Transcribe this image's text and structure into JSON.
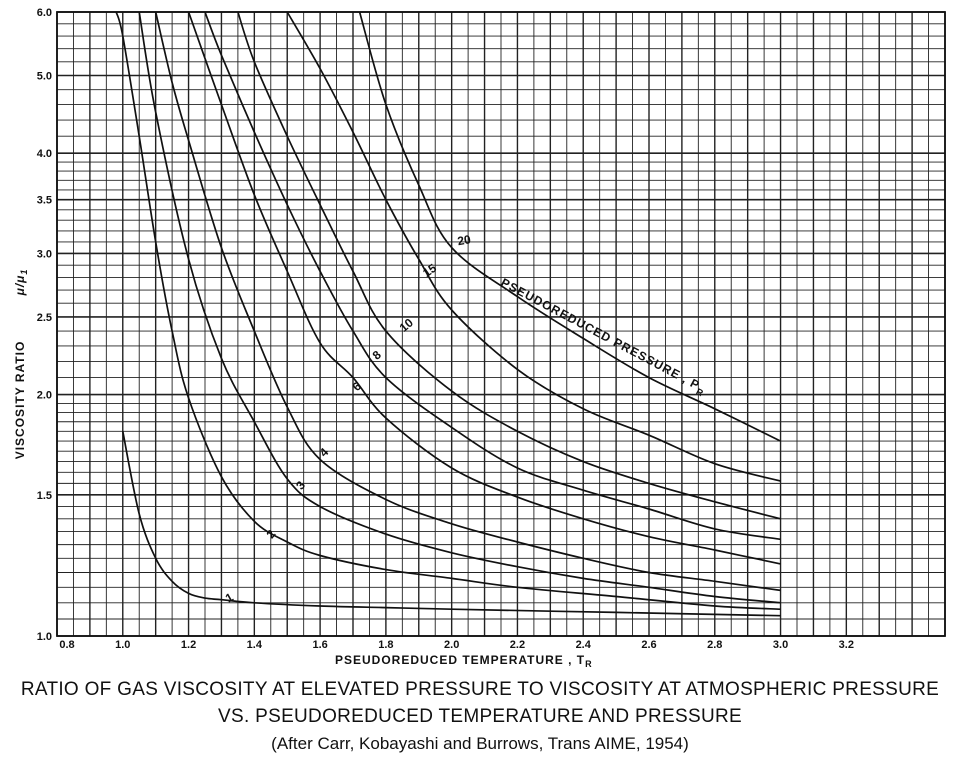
{
  "chart_data": {
    "type": "line",
    "title": "RATIO OF GAS VISCOSITY AT ELEVATED PRESSURE TO VISCOSITY AT ATMOSPHERIC PRESSURE",
    "subtitle": "VS. PSEUDOREDUCED TEMPERATURE AND PRESSURE",
    "source": "(After Carr, Kobayashi and Burrows, Trans AIME, 1954)",
    "xlabel": "PSEUDOREDUCED TEMPERATURE , T",
    "xlabel_subscript": "R",
    "ylabel": "VISCOSITY  RATIO",
    "ylabel_symbol": "μ/μ",
    "ylabel_symbol_subscript": "1",
    "xlim": [
      0.8,
      3.5
    ],
    "ylim": [
      1.0,
      6.0
    ],
    "y_scale": "log",
    "grid": true,
    "x_tick_labels": [
      "0.8",
      "1.0",
      "1.2",
      "1.4",
      "1.6",
      "1.8",
      "2.0",
      "2.2",
      "2.4",
      "2.6",
      "2.8",
      "3.0",
      "3.2"
    ],
    "x_tick_values": [
      0.8,
      1.0,
      1.2,
      1.4,
      1.6,
      1.8,
      2.0,
      2.2,
      2.4,
      2.6,
      2.8,
      3.0,
      3.2
    ],
    "y_tick_labels": [
      "1.0",
      "1.5",
      "2.0",
      "2.5",
      "3.0",
      "3.5",
      "4.0",
      "5.0",
      "6.0"
    ],
    "y_tick_values": [
      1.0,
      1.5,
      2.0,
      2.5,
      3.0,
      3.5,
      4.0,
      5.0,
      6.0
    ],
    "curve_annotation": "PSEUDOREDUCED  PRESSURE , P",
    "curve_annotation_subscript": "R",
    "series": [
      {
        "name": "1",
        "x": [
          1.0,
          1.05,
          1.1,
          1.15,
          1.2,
          1.25,
          1.3,
          1.4,
          1.6,
          1.8,
          2.0,
          2.5,
          3.0
        ],
        "y": [
          1.8,
          1.42,
          1.25,
          1.17,
          1.13,
          1.115,
          1.11,
          1.1,
          1.09,
          1.085,
          1.08,
          1.07,
          1.06
        ]
      },
      {
        "name": "2",
        "x": [
          0.98,
          1.0,
          1.05,
          1.1,
          1.15,
          1.2,
          1.3,
          1.4,
          1.5,
          1.6,
          1.8,
          2.0,
          2.2,
          2.5,
          2.8,
          3.0
        ],
        "y": [
          6.0,
          5.6,
          4.2,
          3.1,
          2.4,
          1.98,
          1.58,
          1.39,
          1.31,
          1.26,
          1.21,
          1.18,
          1.15,
          1.12,
          1.09,
          1.08
        ]
      },
      {
        "name": "3",
        "x": [
          1.05,
          1.1,
          1.2,
          1.3,
          1.4,
          1.5,
          1.6,
          1.8,
          2.0,
          2.2,
          2.4,
          2.6,
          2.8,
          3.0
        ],
        "y": [
          6.0,
          4.5,
          2.95,
          2.22,
          1.85,
          1.57,
          1.45,
          1.34,
          1.27,
          1.22,
          1.18,
          1.15,
          1.12,
          1.1
        ]
      },
      {
        "name": "4",
        "x": [
          1.1,
          1.15,
          1.2,
          1.3,
          1.4,
          1.5,
          1.6,
          1.8,
          2.0,
          2.2,
          2.4,
          2.6,
          2.8,
          3.0
        ],
        "y": [
          6.0,
          4.9,
          4.15,
          3.05,
          2.4,
          1.93,
          1.66,
          1.48,
          1.38,
          1.31,
          1.25,
          1.2,
          1.17,
          1.14
        ]
      },
      {
        "name": "6",
        "x": [
          1.2,
          1.3,
          1.4,
          1.5,
          1.6,
          1.7,
          1.8,
          2.0,
          2.2,
          2.4,
          2.6,
          2.8,
          3.0
        ],
        "y": [
          6.0,
          4.6,
          3.55,
          2.85,
          2.32,
          2.1,
          1.87,
          1.62,
          1.49,
          1.4,
          1.33,
          1.28,
          1.23
        ]
      },
      {
        "name": "8",
        "x": [
          1.25,
          1.3,
          1.4,
          1.5,
          1.6,
          1.7,
          1.8,
          2.0,
          2.2,
          2.4,
          2.6,
          2.8,
          3.0
        ],
        "y": [
          6.0,
          5.3,
          4.25,
          3.45,
          2.85,
          2.4,
          2.1,
          1.82,
          1.62,
          1.52,
          1.44,
          1.36,
          1.32
        ]
      },
      {
        "name": "10",
        "x": [
          1.35,
          1.4,
          1.5,
          1.6,
          1.7,
          1.8,
          2.0,
          2.2,
          2.4,
          2.6,
          2.8,
          3.0
        ],
        "y": [
          6.0,
          5.2,
          4.2,
          3.45,
          2.85,
          2.4,
          2.02,
          1.8,
          1.65,
          1.55,
          1.47,
          1.4
        ]
      },
      {
        "name": "15",
        "x": [
          1.5,
          1.6,
          1.7,
          1.8,
          1.9,
          2.0,
          2.2,
          2.4,
          2.6,
          2.8,
          3.0
        ],
        "y": [
          6.0,
          5.1,
          4.25,
          3.5,
          2.95,
          2.55,
          2.15,
          1.92,
          1.78,
          1.64,
          1.56
        ]
      },
      {
        "name": "20",
        "x": [
          1.72,
          1.8,
          1.9,
          2.0,
          2.2,
          2.4,
          2.6,
          2.8,
          3.0
        ],
        "y": [
          6.0,
          4.6,
          3.65,
          3.05,
          2.65,
          2.35,
          2.1,
          1.92,
          1.75
        ]
      }
    ]
  }
}
